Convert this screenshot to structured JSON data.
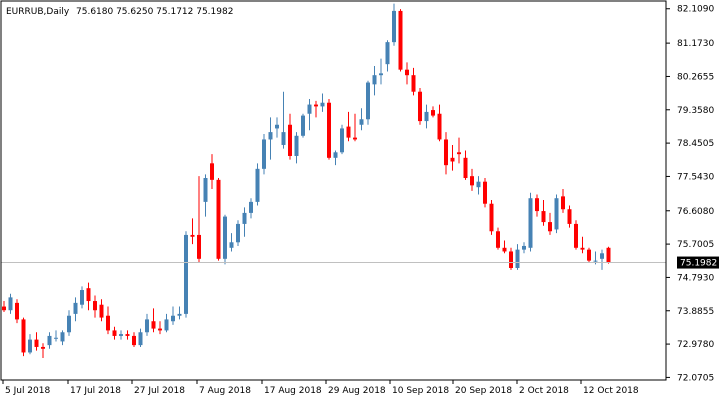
{
  "header": {
    "symbol": "EURRUB,Daily",
    "ohlc": "75.6180 75.6250 75.1712 75.1982"
  },
  "chart_data": {
    "type": "candlestick",
    "symbol": "EURRUB",
    "timeframe": "Daily",
    "ylim": [
      72.0,
      82.32
    ],
    "y_ticks": [
      "82.1090",
      "81.1730",
      "80.2655",
      "79.3580",
      "78.4505",
      "77.5430",
      "76.6080",
      "75.7005",
      "74.7930",
      "73.8855",
      "72.9780",
      "72.0705"
    ],
    "x_ticks": [
      "5 Jul 2018",
      "17 Jul 2018",
      "27 Jul 2018",
      "7 Aug 2018",
      "17 Aug 2018",
      "29 Aug 2018",
      "10 Sep 2018",
      "20 Sep 2018",
      "2 Oct 2018",
      "12 Oct 2018"
    ],
    "current_price": "75.1982",
    "grid": false,
    "up_color": "#4682b4",
    "down_color": "#ff0000",
    "candles": [
      [
        74.0,
        74.15,
        73.85,
        73.9
      ],
      [
        73.9,
        74.35,
        73.8,
        74.25
      ],
      [
        74.1,
        74.2,
        73.55,
        73.65
      ],
      [
        73.65,
        73.7,
        72.65,
        72.75
      ],
      [
        72.75,
        73.25,
        72.7,
        73.1
      ],
      [
        73.1,
        73.3,
        72.8,
        72.9
      ],
      [
        72.9,
        73.0,
        72.6,
        72.85
      ],
      [
        72.95,
        73.3,
        72.85,
        73.2
      ],
      [
        73.15,
        73.35,
        73.05,
        73.15
      ],
      [
        73.05,
        73.35,
        72.95,
        73.3
      ],
      [
        73.3,
        73.9,
        73.2,
        73.75
      ],
      [
        73.8,
        74.25,
        73.6,
        74.1
      ],
      [
        74.05,
        74.55,
        73.95,
        74.45
      ],
      [
        74.5,
        74.65,
        73.9,
        74.15
      ],
      [
        74.15,
        74.3,
        73.7,
        73.9
      ],
      [
        74.05,
        74.2,
        73.6,
        73.7
      ],
      [
        73.75,
        74.0,
        73.25,
        73.35
      ],
      [
        73.35,
        73.45,
        73.1,
        73.2
      ],
      [
        73.2,
        73.35,
        73.1,
        73.25
      ],
      [
        73.25,
        73.35,
        73.1,
        73.2
      ],
      [
        73.2,
        73.3,
        72.9,
        72.95
      ],
      [
        72.95,
        73.4,
        72.9,
        73.3
      ],
      [
        73.3,
        73.8,
        73.2,
        73.65
      ],
      [
        73.6,
        73.95,
        73.3,
        73.4
      ],
      [
        73.4,
        73.6,
        73.25,
        73.35
      ],
      [
        73.35,
        73.8,
        73.3,
        73.65
      ],
      [
        73.6,
        74.0,
        73.5,
        73.75
      ],
      [
        73.75,
        74.0,
        73.65,
        73.8
      ],
      [
        73.8,
        76.05,
        73.7,
        75.95
      ],
      [
        75.95,
        76.4,
        75.7,
        75.9
      ],
      [
        75.95,
        77.55,
        75.2,
        75.3
      ],
      [
        76.85,
        77.6,
        76.45,
        77.5
      ],
      [
        77.9,
        78.15,
        77.2,
        77.45
      ],
      [
        77.45,
        77.5,
        75.25,
        75.3
      ],
      [
        75.3,
        76.5,
        75.15,
        76.45
      ],
      [
        75.6,
        76.0,
        75.5,
        75.75
      ],
      [
        75.75,
        76.35,
        75.65,
        76.25
      ],
      [
        76.25,
        76.7,
        75.9,
        76.55
      ],
      [
        76.55,
        76.95,
        76.4,
        76.85
      ],
      [
        76.85,
        77.9,
        76.75,
        77.75
      ],
      [
        77.75,
        78.7,
        77.6,
        78.55
      ],
      [
        78.55,
        79.15,
        78.0,
        78.75
      ],
      [
        78.85,
        79.15,
        78.6,
        78.95
      ],
      [
        78.4,
        79.85,
        78.3,
        78.75
      ],
      [
        78.95,
        79.25,
        78.0,
        78.1
      ],
      [
        78.1,
        78.75,
        77.9,
        78.65
      ],
      [
        78.65,
        79.25,
        78.6,
        79.2
      ],
      [
        79.25,
        79.65,
        78.8,
        79.5
      ],
      [
        79.5,
        79.6,
        79.15,
        79.45
      ],
      [
        79.45,
        79.8,
        79.3,
        79.55
      ],
      [
        79.55,
        79.65,
        78.0,
        78.05
      ],
      [
        78.05,
        78.25,
        77.85,
        78.2
      ],
      [
        78.2,
        78.95,
        78.15,
        78.85
      ],
      [
        78.9,
        79.3,
        78.5,
        78.6
      ],
      [
        78.6,
        79.25,
        78.5,
        78.55
      ],
      [
        78.95,
        79.4,
        78.8,
        79.1
      ],
      [
        79.1,
        80.15,
        78.95,
        80.1
      ],
      [
        80.05,
        80.55,
        79.75,
        80.3
      ],
      [
        80.3,
        80.75,
        80.05,
        80.35
      ],
      [
        80.6,
        81.25,
        80.4,
        81.2
      ],
      [
        81.2,
        82.25,
        81.1,
        82.05
      ],
      [
        82.05,
        82.1,
        80.4,
        80.45
      ],
      [
        80.45,
        80.65,
        80.05,
        80.3
      ],
      [
        80.3,
        80.5,
        79.75,
        79.85
      ],
      [
        79.85,
        79.95,
        78.95,
        79.05
      ],
      [
        79.05,
        79.5,
        78.85,
        79.3
      ],
      [
        79.35,
        79.45,
        79.15,
        79.2
      ],
      [
        79.25,
        79.5,
        78.5,
        78.55
      ],
      [
        78.55,
        78.75,
        77.6,
        77.85
      ],
      [
        78.05,
        78.4,
        77.7,
        77.95
      ],
      [
        78.2,
        78.6,
        77.9,
        78.15
      ],
      [
        78.05,
        78.25,
        77.45,
        77.5
      ],
      [
        77.55,
        77.75,
        77.15,
        77.3
      ],
      [
        77.25,
        77.55,
        77.05,
        77.4
      ],
      [
        77.4,
        77.5,
        76.7,
        76.8
      ],
      [
        76.8,
        76.9,
        75.95,
        76.05
      ],
      [
        76.05,
        76.15,
        75.55,
        75.6
      ],
      [
        75.6,
        75.8,
        75.45,
        75.5
      ],
      [
        75.5,
        75.6,
        75.0,
        75.05
      ],
      [
        75.05,
        75.7,
        75.0,
        75.55
      ],
      [
        75.55,
        75.75,
        75.45,
        75.65
      ],
      [
        75.6,
        77.1,
        75.5,
        76.95
      ],
      [
        76.95,
        77.05,
        76.45,
        76.6
      ],
      [
        76.6,
        76.9,
        76.2,
        76.3
      ],
      [
        76.3,
        76.55,
        75.95,
        76.05
      ],
      [
        76.1,
        77.05,
        76.0,
        76.95
      ],
      [
        77.0,
        77.2,
        76.55,
        76.65
      ],
      [
        76.65,
        76.75,
        76.15,
        76.25
      ],
      [
        76.25,
        76.35,
        75.55,
        75.6
      ],
      [
        75.6,
        75.9,
        75.45,
        75.55
      ],
      [
        75.55,
        75.6,
        75.2,
        75.25
      ],
      [
        75.25,
        75.5,
        75.15,
        75.25
      ],
      [
        75.3,
        75.55,
        75.0,
        75.45
      ],
      [
        75.6,
        75.63,
        75.17,
        75.2
      ]
    ]
  }
}
